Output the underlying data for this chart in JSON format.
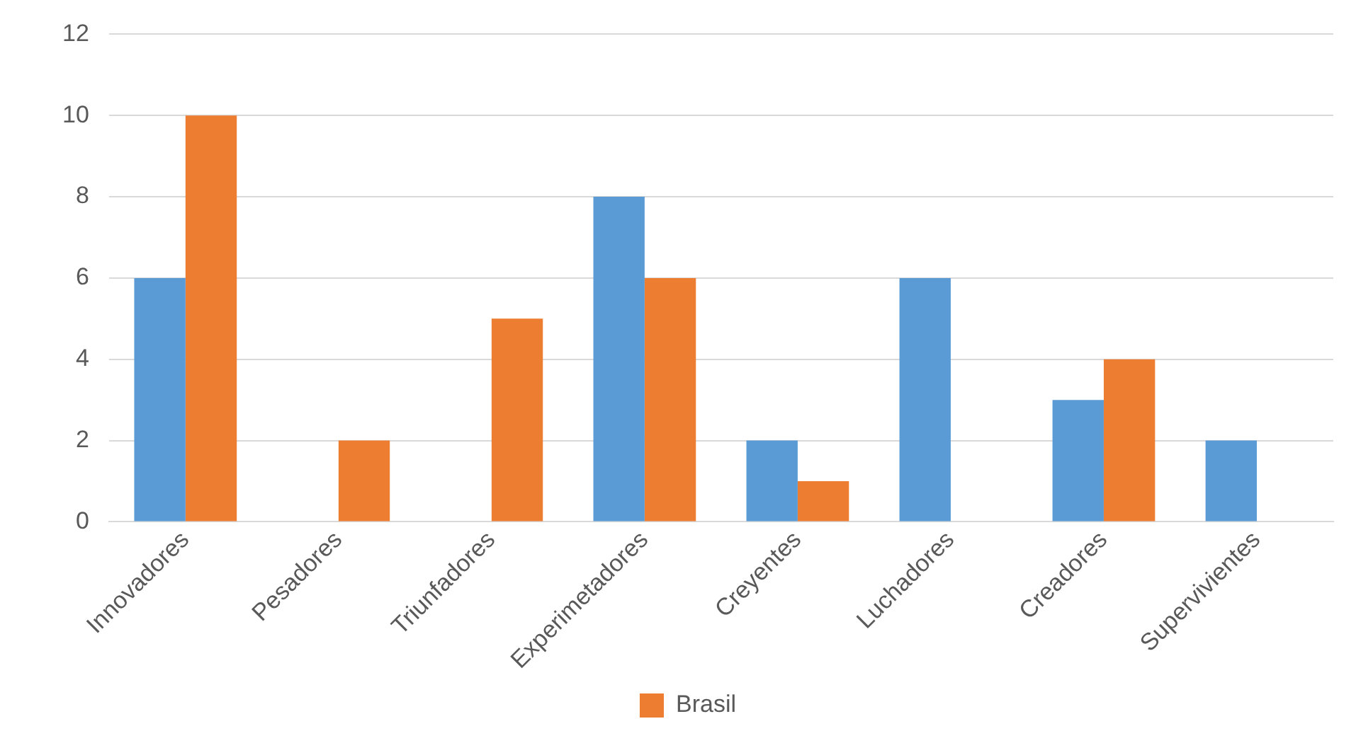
{
  "chart_data": {
    "type": "bar",
    "categories": [
      "Innovadores",
      "Pesadores",
      "Triunfadores",
      "Experimetadores",
      "Creyentes",
      "Luchadores",
      "Creadores",
      "Supervivientes"
    ],
    "series": [
      {
        "color": "#5b9bd5",
        "values": [
          6,
          0,
          0,
          8,
          2,
          6,
          3,
          2
        ]
      },
      {
        "name": "Brasil",
        "color": "#ed7d31",
        "values": [
          10,
          2,
          5,
          6,
          1,
          0,
          4,
          0
        ]
      }
    ],
    "ylim": [
      0,
      12
    ],
    "yticks": [
      0,
      2,
      4,
      6,
      8,
      10,
      12
    ],
    "grid": "y",
    "legend": "bottom"
  }
}
